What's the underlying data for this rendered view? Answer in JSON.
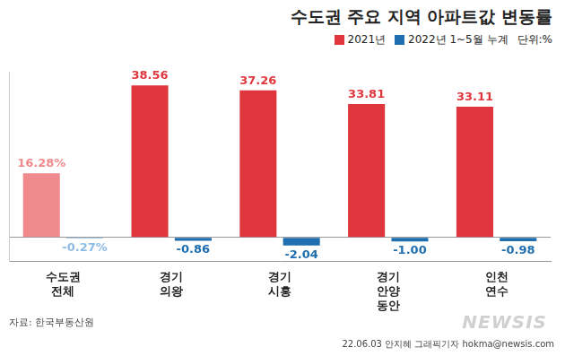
{
  "chart_data": {
    "type": "bar",
    "title": "수도권 주요 지역 아파트값 변동률",
    "unit": "단위:%",
    "source": "자료: 한국부동산원",
    "credit": "22.06.03 안지혜 그래픽기자 hokma@newsis.com",
    "watermark": "NEWSIS",
    "categories": [
      "수도권 전체",
      "경기 의왕",
      "경기 시흥",
      "경기 안양 동안",
      "인천 연수"
    ],
    "series": [
      {
        "name": "2021년",
        "color": "#e0363d",
        "colors": [
          "#f08a8c",
          "#e0363d",
          "#e0363d",
          "#e0363d",
          "#e0363d"
        ],
        "values": [
          16.28,
          38.56,
          37.26,
          33.81,
          33.11
        ],
        "value_labels": [
          "16.28%",
          "38.56",
          "37.26",
          "33.81",
          "33.11"
        ]
      },
      {
        "name": "2022년 1~5월 누계",
        "color": "#1f6eb0",
        "colors": [
          "#8dbbe6",
          "#1f6eb0",
          "#1f6eb0",
          "#1f6eb0",
          "#1f6eb0"
        ],
        "values": [
          -0.27,
          -0.86,
          -2.04,
          -1.0,
          -0.98
        ],
        "value_labels": [
          "-0.27%",
          "-0.86",
          "-2.04",
          "-1.00",
          "-0.98"
        ]
      }
    ],
    "ylim": [
      -6,
      42
    ],
    "grid": false,
    "legend": "top-right",
    "data_labels": true,
    "tick_labels": "x"
  }
}
